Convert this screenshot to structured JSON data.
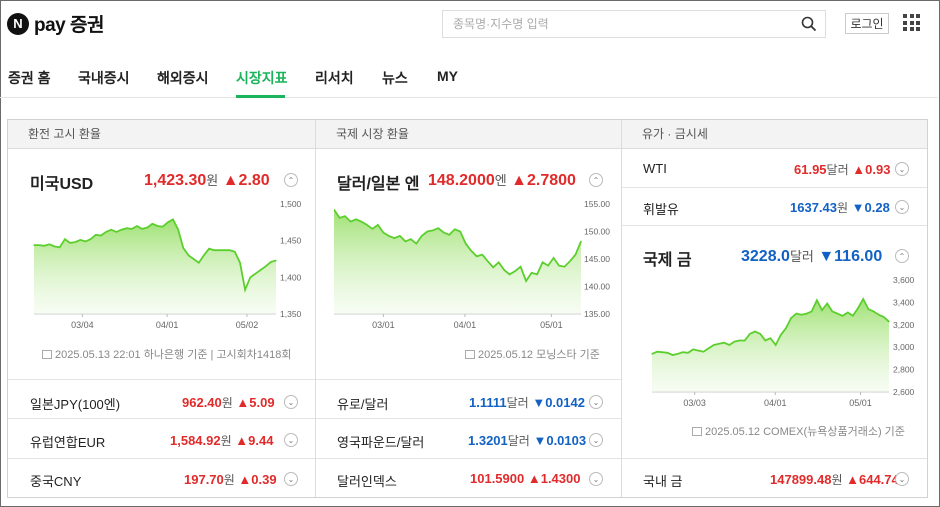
{
  "logo": {
    "badge": "N",
    "text": "pay 증권"
  },
  "search": {
    "placeholder": "종목명·지수명 입력"
  },
  "login_label": "로그인",
  "nav": [
    "증권 홈",
    "국내증시",
    "해외증시",
    "시장지표",
    "리서치",
    "뉴스",
    "MY"
  ],
  "nav_active": "시장지표",
  "colors": {
    "up": "#e12a2a",
    "down": "#1261c4",
    "accent": "#1bb35b"
  },
  "columns": {
    "exchange": {
      "header": "환전 고시 환율",
      "main": {
        "name": "미국USD",
        "value": "1,423.30",
        "unit": "원",
        "change": "2.80",
        "direction": "up"
      },
      "note": "2025.05.13 22:01 하나은행 기준 | 고시회차1418회",
      "rows": [
        {
          "name": "일본JPY(100엔)",
          "value": "962.40",
          "unit": "원",
          "change": "5.09",
          "direction": "up"
        },
        {
          "name": "유럽연합EUR",
          "value": "1,584.92",
          "unit": "원",
          "change": "9.44",
          "direction": "up"
        },
        {
          "name": "중국CNY",
          "value": "197.70",
          "unit": "원",
          "change": "0.39",
          "direction": "up"
        }
      ]
    },
    "international": {
      "header": "국제 시장 환율",
      "main": {
        "name": "달러/일본 엔",
        "value": "148.2000",
        "unit": "엔",
        "change": "2.7800",
        "direction": "up"
      },
      "note": "2025.05.12 모닝스타 기준",
      "rows": [
        {
          "name": "유로/달러",
          "value": "1.1111",
          "unit": "달러",
          "change": "0.0142",
          "direction": "down"
        },
        {
          "name": "영국파운드/달러",
          "value": "1.3201",
          "unit": "달러",
          "change": "0.0103",
          "direction": "down"
        },
        {
          "name": "달러인덱스",
          "value": "101.5900",
          "unit": "",
          "change": "1.4300",
          "direction": "up"
        }
      ]
    },
    "commodity": {
      "header": "유가 · 금시세",
      "top_rows": [
        {
          "name": "WTI",
          "value": "61.95",
          "unit": "달러",
          "change": "0.93",
          "direction": "up"
        },
        {
          "name": "휘발유",
          "value": "1637.43",
          "unit": "원",
          "change": "0.28",
          "direction": "down"
        }
      ],
      "main": {
        "name": "국제 금",
        "value": "3228.0",
        "unit": "달러",
        "change": "116.00",
        "direction": "down"
      },
      "note": "2025.05.12 COMEX(뉴욕상품거래소) 기준",
      "rows": [
        {
          "name": "국내 금",
          "value": "147899.48",
          "unit": "원",
          "change": "644.74",
          "direction": "up"
        }
      ]
    }
  },
  "chart_data": [
    {
      "type": "area",
      "title": "미국USD",
      "x_ticks": [
        "03/04",
        "04/01",
        "05/02"
      ],
      "y_ticks": [
        "1,500",
        "1,450",
        "1,400",
        "1,350"
      ],
      "ylim": [
        1350,
        1500
      ],
      "grid": false,
      "values": [
        1444,
        1444,
        1443,
        1445,
        1442,
        1441,
        1452,
        1447,
        1448,
        1451,
        1449,
        1452,
        1458,
        1457,
        1462,
        1465,
        1462,
        1465,
        1467,
        1466,
        1470,
        1466,
        1468,
        1473,
        1470,
        1469,
        1475,
        1479,
        1465,
        1440,
        1430,
        1425,
        1420,
        1430,
        1439,
        1437,
        1437,
        1437,
        1437,
        1435,
        1420,
        1383,
        1400,
        1405,
        1410,
        1415,
        1421,
        1423
      ]
    },
    {
      "type": "area",
      "title": "달러/일본 엔",
      "x_ticks": [
        "03/01",
        "04/01",
        "05/01"
      ],
      "y_ticks": [
        "155.00",
        "150.00",
        "145.00",
        "140.00",
        "135.00"
      ],
      "ylim": [
        135,
        155
      ],
      "grid": false,
      "values": [
        154,
        152.5,
        152.8,
        151.8,
        152.2,
        151.8,
        151.2,
        150.5,
        151.2,
        149.8,
        149.2,
        148.8,
        149.2,
        148.2,
        148.6,
        147.8,
        149.2,
        150.0,
        150.2,
        150.6,
        149.8,
        149.4,
        150.4,
        150.0,
        147.8,
        146.5,
        145.5,
        145.8,
        144.6,
        143.5,
        144.4,
        143.0,
        142.2,
        142.8,
        143.6,
        141.0,
        142.5,
        142.2,
        144.4,
        143.8,
        145.2,
        143.8,
        143.6,
        144.6,
        145.8,
        148.2
      ]
    },
    {
      "type": "area",
      "title": "국제 금",
      "x_ticks": [
        "03/03",
        "04/01",
        "05/01"
      ],
      "y_ticks": [
        "3,600",
        "3,400",
        "3,200",
        "3,000",
        "2,800",
        "2,600"
      ],
      "ylim": [
        2600,
        3600
      ],
      "grid": false,
      "values": [
        2940,
        2960,
        2955,
        2950,
        2930,
        2940,
        2955,
        2950,
        2980,
        2970,
        2960,
        2990,
        3020,
        3030,
        3040,
        3020,
        3050,
        3060,
        3060,
        3120,
        3140,
        3120,
        3060,
        3080,
        3020,
        3110,
        3170,
        3260,
        3300,
        3290,
        3300,
        3320,
        3420,
        3330,
        3390,
        3320,
        3300,
        3280,
        3310,
        3280,
        3350,
        3430,
        3340,
        3320,
        3290,
        3270,
        3228
      ]
    }
  ]
}
